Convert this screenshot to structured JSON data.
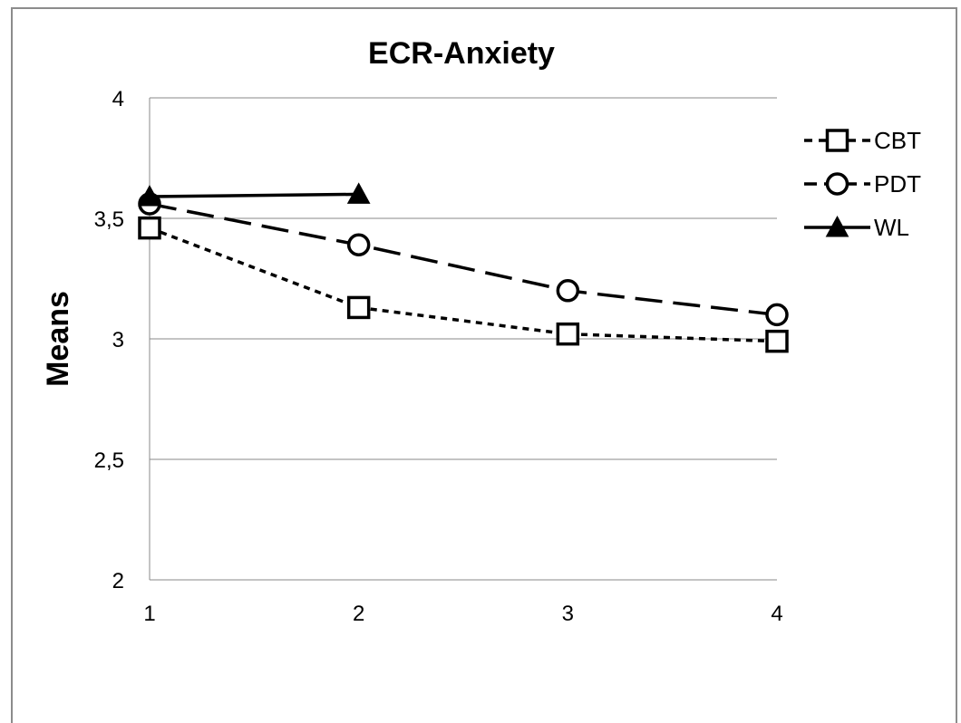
{
  "chart_data": {
    "type": "line",
    "title": "ECR-Anxiety",
    "xlabel": "",
    "ylabel": "Means",
    "x": [
      1,
      2,
      3,
      4
    ],
    "x_tick_labels": [
      "1",
      "2",
      "3",
      "4"
    ],
    "y_tick_labels": [
      "2",
      "2,5",
      "3",
      "3,5",
      "4"
    ],
    "y_ticks": [
      2,
      2.5,
      3,
      3.5,
      4
    ],
    "ylim": [
      2,
      4
    ],
    "grid": "horizontal",
    "legend_position": "right",
    "series": [
      {
        "name": "CBT",
        "values": [
          3.46,
          3.13,
          3.02,
          2.99
        ],
        "line_style": "dotted",
        "marker": "square",
        "color": "#000000"
      },
      {
        "name": "PDT",
        "values": [
          3.56,
          3.39,
          3.2,
          3.1
        ],
        "line_style": "dashed",
        "marker": "circle",
        "color": "#000000"
      },
      {
        "name": "WL",
        "values": [
          3.59,
          3.6,
          null,
          null
        ],
        "line_style": "solid",
        "marker": "triangle",
        "color": "#000000"
      }
    ]
  }
}
